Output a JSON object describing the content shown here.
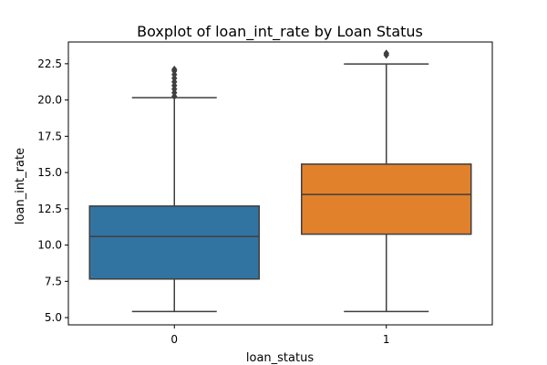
{
  "chart_data": {
    "type": "boxplot",
    "title": "Boxplot of loan_int_rate by Loan Status",
    "xlabel": "loan_status",
    "ylabel": "loan_int_rate",
    "ylim": [
      4.5,
      24.0
    ],
    "yticks": [
      5.0,
      7.5,
      10.0,
      12.5,
      15.0,
      17.5,
      20.0,
      22.5
    ],
    "ytick_labels": [
      "5.0",
      "7.5",
      "10.0",
      "12.5",
      "15.0",
      "17.5",
      "20.0",
      "22.5"
    ],
    "categories": [
      "0",
      "1"
    ],
    "boxes": [
      {
        "category": "0",
        "whisker_low": 5.42,
        "q1": 7.66,
        "median": 10.59,
        "q3": 12.69,
        "whisker_high": 20.16,
        "outliers": [
          20.25,
          20.5,
          20.75,
          21.0,
          21.25,
          21.5,
          21.75,
          22.0,
          22.11
        ],
        "color": "#3274a1"
      },
      {
        "category": "1",
        "whisker_low": 5.42,
        "q1": 10.75,
        "median": 13.49,
        "q3": 15.58,
        "whisker_high": 22.48,
        "outliers": [
          23.1,
          23.22
        ],
        "color": "#e1812c"
      }
    ],
    "grid": false
  }
}
